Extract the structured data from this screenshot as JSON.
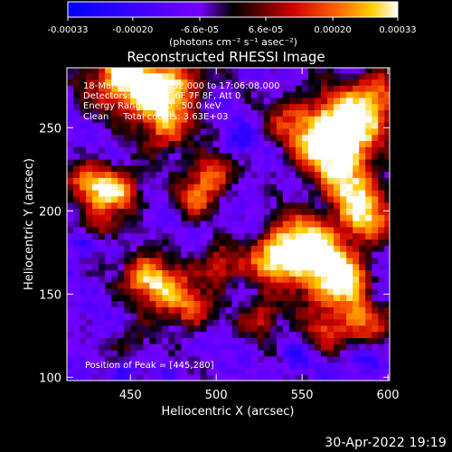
{
  "colorbar": {
    "ticks": [
      "-0.00033",
      "-0.00020",
      "-6.6e-05",
      "6.6e-05",
      "0.00020",
      "0.00033"
    ],
    "tick_values": [
      -0.00033,
      -0.0002,
      -6.6e-05,
      6.6e-05,
      0.0002,
      0.00033
    ],
    "range": [
      -0.00033,
      0.00033
    ],
    "units": "(photons cm⁻² s⁻¹ asec⁻²)"
  },
  "chart_data": {
    "type": "heatmap",
    "title": "Reconstructed RHESSI Image",
    "xlabel": "Heliocentric X (arcsec)",
    "ylabel": "Heliocentric Y (arcsec)",
    "xlim": [
      413,
      601
    ],
    "ylim": [
      98,
      286
    ],
    "x_ticks": [
      450,
      500,
      550,
      600
    ],
    "y_ticks": [
      100,
      150,
      200,
      250
    ],
    "annotations": [
      "18-Mar-2004 17:02:32.000 to 17:06:08.000",
      "Detectors: 3F 4F 5F 6F 7F 8F, Att 0",
      "Energy Range: 25.0 - 50.0 keV",
      "Clean     Total counts: 3.63E+03"
    ],
    "peak_label": "Position of Peak = [445,280]",
    "peak": [
      445,
      280
    ],
    "hotspots": [
      {
        "x": 443,
        "y": 280,
        "amp": 1.0,
        "r": 14
      },
      {
        "x": 462,
        "y": 268,
        "amp": 0.85,
        "r": 11
      },
      {
        "x": 480,
        "y": 278,
        "amp": 0.6,
        "r": 10
      },
      {
        "x": 575,
        "y": 250,
        "amp": 1.0,
        "r": 16
      },
      {
        "x": 560,
        "y": 238,
        "amp": 0.8,
        "r": 13
      },
      {
        "x": 592,
        "y": 268,
        "amp": 0.6,
        "r": 10
      },
      {
        "x": 585,
        "y": 195,
        "amp": 0.85,
        "r": 12
      },
      {
        "x": 575,
        "y": 215,
        "amp": 0.7,
        "r": 11
      },
      {
        "x": 470,
        "y": 248,
        "amp": 0.7,
        "r": 11
      },
      {
        "x": 540,
        "y": 255,
        "amp": 0.4,
        "r": 10
      },
      {
        "x": 425,
        "y": 215,
        "amp": 0.75,
        "r": 10
      },
      {
        "x": 442,
        "y": 210,
        "amp": 0.8,
        "r": 9
      },
      {
        "x": 428,
        "y": 190,
        "amp": 0.55,
        "r": 8
      },
      {
        "x": 495,
        "y": 220,
        "amp": 0.75,
        "r": 9
      },
      {
        "x": 485,
        "y": 205,
        "amp": 0.55,
        "r": 8
      },
      {
        "x": 560,
        "y": 165,
        "amp": 0.95,
        "r": 14
      },
      {
        "x": 545,
        "y": 180,
        "amp": 0.85,
        "r": 12
      },
      {
        "x": 530,
        "y": 168,
        "amp": 0.7,
        "r": 10
      },
      {
        "x": 575,
        "y": 150,
        "amp": 0.75,
        "r": 11
      },
      {
        "x": 587,
        "y": 130,
        "amp": 0.7,
        "r": 10
      },
      {
        "x": 500,
        "y": 165,
        "amp": 0.65,
        "r": 9
      },
      {
        "x": 470,
        "y": 150,
        "amp": 0.85,
        "r": 10
      },
      {
        "x": 455,
        "y": 160,
        "amp": 0.8,
        "r": 9
      },
      {
        "x": 485,
        "y": 138,
        "amp": 0.6,
        "r": 8
      },
      {
        "x": 525,
        "y": 135,
        "amp": 0.55,
        "r": 9
      },
      {
        "x": 560,
        "y": 125,
        "amp": 0.5,
        "r": 9
      },
      {
        "x": 450,
        "y": 120,
        "amp": 0.35,
        "r": 8
      }
    ],
    "cold_spots": [
      {
        "x": 420,
        "y": 180,
        "amp": 0.8,
        "r": 6
      },
      {
        "x": 590,
        "y": 148,
        "amp": 0.9,
        "r": 6
      },
      {
        "x": 585,
        "y": 110,
        "amp": 0.8,
        "r": 6
      },
      {
        "x": 445,
        "y": 100,
        "amp": 0.7,
        "r": 5
      },
      {
        "x": 510,
        "y": 240,
        "amp": 0.6,
        "r": 6
      },
      {
        "x": 545,
        "y": 110,
        "amp": 0.7,
        "r": 5
      }
    ]
  },
  "footer": {
    "datetime": "30-Apr-2022 19:19"
  }
}
